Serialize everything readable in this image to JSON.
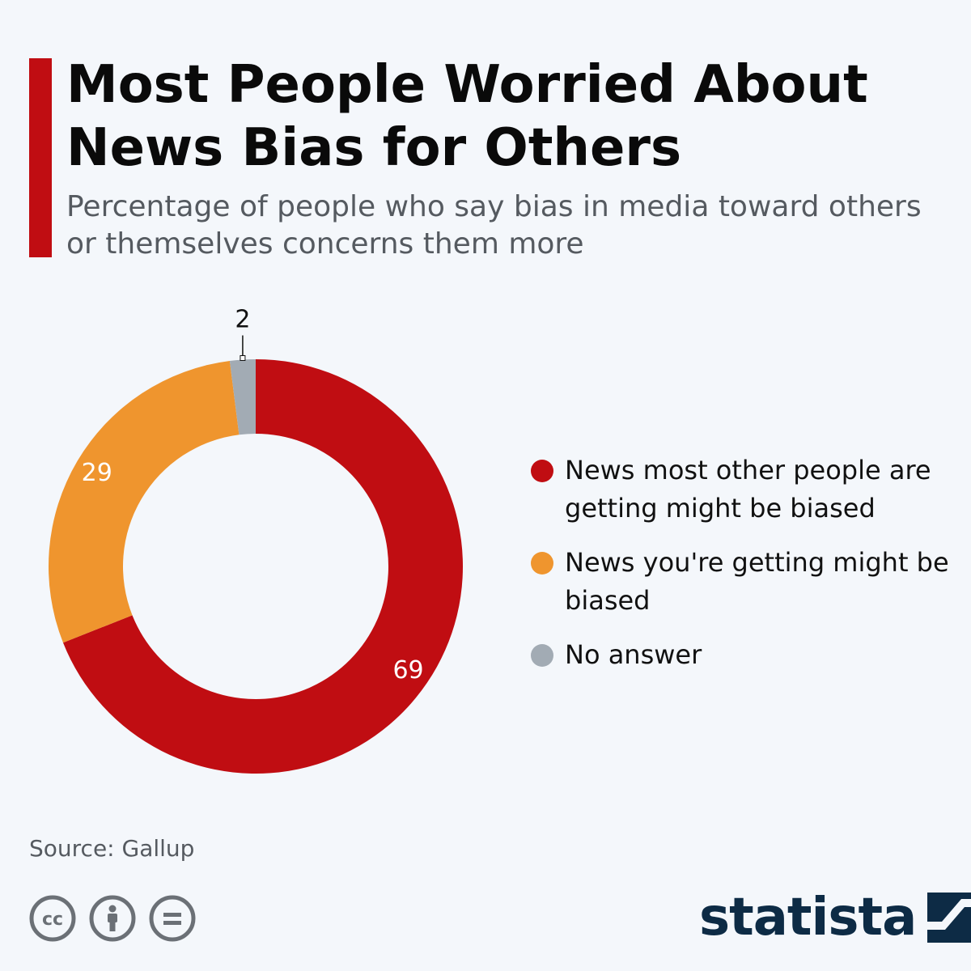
{
  "header": {
    "title": "Most People Worried About News Bias for Others",
    "subtitle": "Percentage of people who say bias in media toward others or themselves concerns them more"
  },
  "chart_data": {
    "type": "pie",
    "style": "donut",
    "slices": [
      {
        "label": "News most other people are getting might be biased",
        "value": 69,
        "color": "#c00d12",
        "label_color": "#ffffff"
      },
      {
        "label": "News you're getting might be biased",
        "value": 29,
        "color": "#ef952e",
        "label_color": "#ffffff"
      },
      {
        "label": "No answer",
        "value": 2,
        "color": "#a2abb4",
        "label_color": "#111111"
      }
    ],
    "legend_position": "right"
  },
  "footer": {
    "source": "Source: Gallup",
    "icons": [
      "cc-license-icon",
      "attribution-icon",
      "no-derivatives-icon"
    ]
  },
  "brand": {
    "name": "statista",
    "color": "#0d2b45"
  }
}
